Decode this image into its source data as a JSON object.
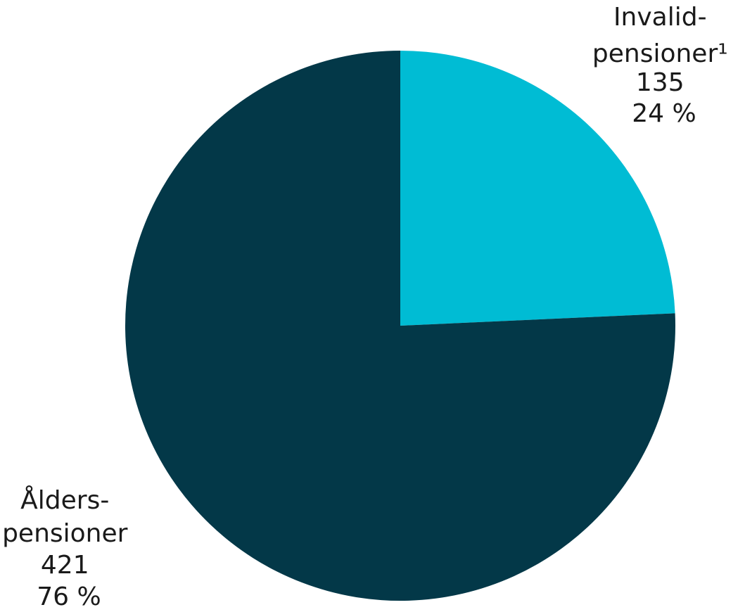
{
  "chart_data": {
    "type": "pie",
    "title": "",
    "slices": [
      {
        "label_lines": [
          "Invalid-",
          "pensioner¹"
        ],
        "value": 135,
        "value_label": "135",
        "percent": 24,
        "percent_label": "24 %",
        "color": "#00bcd4"
      },
      {
        "label_lines": [
          "Ålders-",
          "pensioner"
        ],
        "value": 421,
        "value_label": "421",
        "percent": 76,
        "percent_label": "76 %",
        "color": "#033848"
      }
    ]
  }
}
